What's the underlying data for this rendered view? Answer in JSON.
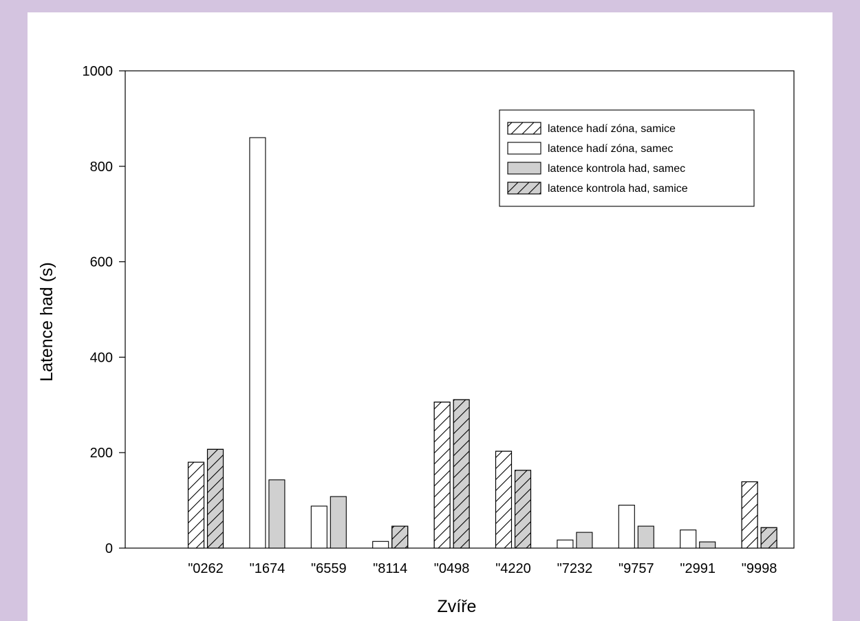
{
  "chart_data": {
    "type": "bar",
    "xlabel": "Zvíře",
    "ylabel": "Latence had (s)",
    "ylim": [
      0,
      1000
    ],
    "yticks": [
      0,
      200,
      400,
      600,
      800,
      1000
    ],
    "grid": false,
    "legend_position": "top-right",
    "categories": [
      "\"0262",
      "\"1674",
      "\"6559",
      "\"8114",
      "\"0498",
      "\"4220",
      "\"7232",
      "\"9757",
      "\"2991",
      "\"9998"
    ],
    "series": [
      {
        "name": "latence hadí zóna, samice",
        "fill": "#ffffff",
        "hatch": true,
        "values": [
          180,
          null,
          null,
          null,
          306,
          203,
          null,
          null,
          null,
          139
        ]
      },
      {
        "name": "latence hadí zóna, samec",
        "fill": "#ffffff",
        "hatch": false,
        "values": [
          null,
          860,
          88,
          14,
          null,
          null,
          17,
          90,
          38,
          null
        ]
      },
      {
        "name": "latence kontrola had, samec",
        "fill": "#d0d0d0",
        "hatch": false,
        "values": [
          null,
          143,
          108,
          null,
          null,
          null,
          33,
          46,
          13,
          null
        ]
      },
      {
        "name": "latence kontrola had, samice",
        "fill": "#d0d0d0",
        "hatch": true,
        "values": [
          207,
          null,
          null,
          46,
          311,
          163,
          null,
          null,
          null,
          43
        ]
      }
    ]
  }
}
